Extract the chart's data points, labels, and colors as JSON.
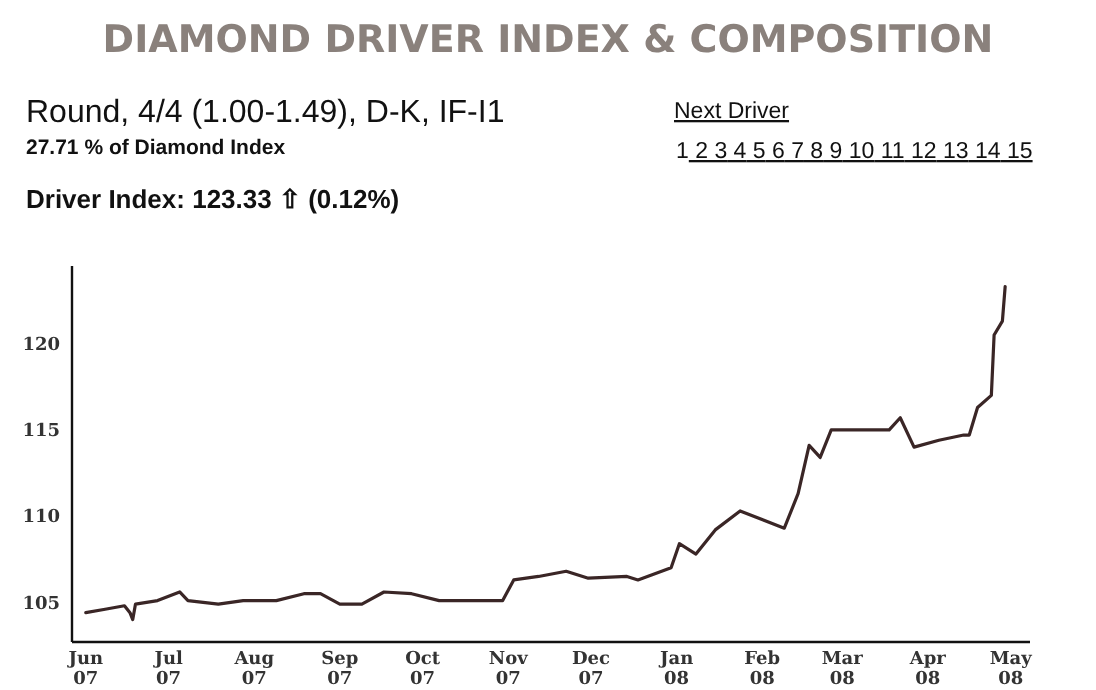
{
  "chart_data": {
    "type": "line",
    "title": "DIAMOND DRIVER INDEX & COMPOSITION",
    "subtitle": "Round, 4/4 (1.00-1.49), D-K, IF-I1",
    "annotations": [
      "27.71 % of Diamond Index",
      "Driver Index: 123.33 ⇧ (0.12%)",
      "Next Driver",
      "1 2 3 4 5 6 7 8 9 10 11 12 13 14 15"
    ],
    "x": [
      "2007-06-01",
      "2007-06-08",
      "2007-06-15",
      "2007-06-17",
      "2007-06-18",
      "2007-06-19",
      "2007-06-27",
      "2007-07-05",
      "2007-07-08",
      "2007-07-19",
      "2007-07-28",
      "2007-08-09",
      "2007-08-19",
      "2007-08-25",
      "2007-09-01",
      "2007-09-09",
      "2007-09-17",
      "2007-09-27",
      "2007-10-07",
      "2007-10-21",
      "2007-10-30",
      "2007-11-03",
      "2007-11-12",
      "2007-11-22",
      "2007-11-30",
      "2007-12-14",
      "2007-12-18",
      "2007-12-30",
      "2008-01-02",
      "2008-01-08",
      "2008-01-15",
      "2008-01-24",
      "2008-02-09",
      "2008-02-14",
      "2008-02-18",
      "2008-02-22",
      "2008-02-26",
      "2008-03-06",
      "2008-03-18",
      "2008-03-22",
      "2008-03-27",
      "2008-04-05",
      "2008-04-14",
      "2008-04-16",
      "2008-04-19",
      "2008-04-24",
      "2008-04-25",
      "2008-04-28",
      "2008-04-29"
    ],
    "series": [
      {
        "color": "#3a2626",
        "values": [
          104.4,
          104.6,
          104.8,
          104.4,
          104.0,
          104.9,
          105.1,
          105.6,
          105.1,
          104.9,
          105.1,
          105.1,
          105.5,
          105.5,
          104.9,
          104.9,
          105.6,
          105.5,
          105.1,
          105.1,
          105.1,
          106.3,
          106.5,
          106.8,
          106.4,
          106.5,
          106.3,
          107.0,
          108.4,
          107.8,
          109.2,
          110.3,
          109.3,
          111.3,
          114.1,
          113.4,
          115.0,
          115.0,
          115.0,
          115.7,
          114.0,
          114.4,
          114.7,
          114.7,
          116.3,
          117.0,
          120.5,
          121.3,
          123.3
        ]
      }
    ],
    "xlim": [
      "2007-05-27",
      "2008-05-08"
    ],
    "xticks": [
      {
        "value": "2007-06-01",
        "label": "Jun\n07"
      },
      {
        "value": "2007-07-01",
        "label": "Jul\n07"
      },
      {
        "value": "2007-08-01",
        "label": "Aug\n07"
      },
      {
        "value": "2007-09-01",
        "label": "Sep\n07"
      },
      {
        "value": "2007-10-01",
        "label": "Oct\n07"
      },
      {
        "value": "2007-11-01",
        "label": "Nov\n07"
      },
      {
        "value": "2007-12-01",
        "label": "Dec\n07"
      },
      {
        "value": "2008-01-01",
        "label": "Jan\n08"
      },
      {
        "value": "2008-02-01",
        "label": "Feb\n08"
      },
      {
        "value": "2008-03-01",
        "label": "Mar\n08"
      },
      {
        "value": "2008-04-01",
        "label": "Apr\n08"
      },
      {
        "value": "2008-05-01",
        "label": "May\n08"
      }
    ],
    "ylim": [
      102.7,
      124.5
    ],
    "yticks": [
      105,
      110,
      115,
      120
    ],
    "grid": false,
    "marker": "none",
    "line_style": "solid"
  }
}
